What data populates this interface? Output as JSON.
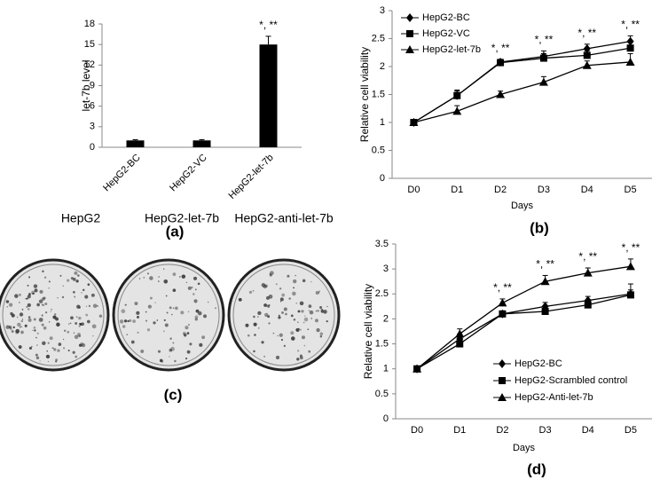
{
  "chart_data": [
    {
      "type": "bar",
      "caption": "(a)",
      "ylabel": "let-7b level",
      "categories": [
        "HepG2-BC",
        "HepG2-VC",
        "HepG2-let-7b"
      ],
      "values": [
        1,
        1,
        15
      ],
      "errors": [
        0.1,
        0.1,
        1.2
      ],
      "color": "#000000",
      "significance": [
        null,
        null,
        "*, **"
      ],
      "ylim": [
        0,
        18
      ],
      "yticks": [
        0,
        3,
        6,
        9,
        12,
        15,
        18
      ]
    },
    {
      "type": "line",
      "caption": "(b)",
      "ylabel": "Relative cell viability",
      "xlabel": "Days",
      "categories": [
        "D0",
        "D1",
        "D2",
        "D3",
        "D4",
        "D5"
      ],
      "series": [
        {
          "name": "HepG2-BC",
          "color": "#000000",
          "marker": "diamond",
          "values": [
            1,
            1.48,
            2.08,
            2.18,
            2.32,
            2.45
          ],
          "errors": [
            0.02,
            0.1,
            0.05,
            0.1,
            0.08,
            0.1
          ]
        },
        {
          "name": "HepG2-VC",
          "color": "#000000",
          "marker": "square",
          "values": [
            1,
            1.48,
            2.07,
            2.15,
            2.2,
            2.33
          ],
          "errors": [
            0.02,
            0.08,
            0.05,
            0.08,
            0.08,
            0.1
          ]
        },
        {
          "name": "HepG2-let-7b",
          "color": "#000000",
          "marker": "triangle",
          "values": [
            1,
            1.2,
            1.5,
            1.72,
            2.02,
            2.08
          ],
          "errors": [
            0.02,
            0.1,
            0.06,
            0.1,
            0.08,
            0.15
          ]
        }
      ],
      "significance": [
        null,
        null,
        "*, **",
        "*, **",
        "*, **",
        "*, **"
      ],
      "legend": "upper left",
      "ylim": [
        0,
        3
      ],
      "yticks": [
        0,
        0.5,
        1,
        1.5,
        2,
        2.5,
        3
      ]
    },
    {
      "type": "line",
      "caption": "(d)",
      "ylabel": "Relative cell viability",
      "xlabel": "Days",
      "categories": [
        "D0",
        "D1",
        "D2",
        "D3",
        "D4",
        "D5"
      ],
      "series": [
        {
          "name": "HepG2-BC",
          "color": "#000000",
          "marker": "diamond",
          "values": [
            1,
            1.6,
            2.1,
            2.25,
            2.37,
            2.5
          ],
          "errors": [
            0.02,
            0.1,
            0.05,
            0.08,
            0.08,
            0.2
          ]
        },
        {
          "name": "HepG2-Scrambled control",
          "color": "#000000",
          "marker": "square",
          "values": [
            1,
            1.5,
            2.1,
            2.15,
            2.28,
            2.48
          ],
          "errors": [
            0.02,
            0.08,
            0.05,
            0.06,
            0.06,
            0.1
          ]
        },
        {
          "name": "HepG2-Anti-let-7b",
          "color": "#000000",
          "marker": "triangle",
          "values": [
            1,
            1.7,
            2.32,
            2.75,
            2.92,
            3.05
          ],
          "errors": [
            0.02,
            0.1,
            0.08,
            0.12,
            0.1,
            0.15
          ]
        }
      ],
      "significance": [
        null,
        null,
        "*, **",
        "*, **",
        "*, **",
        "*, **"
      ],
      "legend": "lower right",
      "ylim": [
        0,
        3.5
      ],
      "yticks": [
        0,
        0.5,
        1,
        1.5,
        2,
        2.5,
        3,
        3.5
      ]
    }
  ],
  "panel_c": {
    "labels": [
      "HepG2",
      "HepG2-let-7b",
      "HepG2-anti-let-7b"
    ],
    "caption": "(c)"
  }
}
